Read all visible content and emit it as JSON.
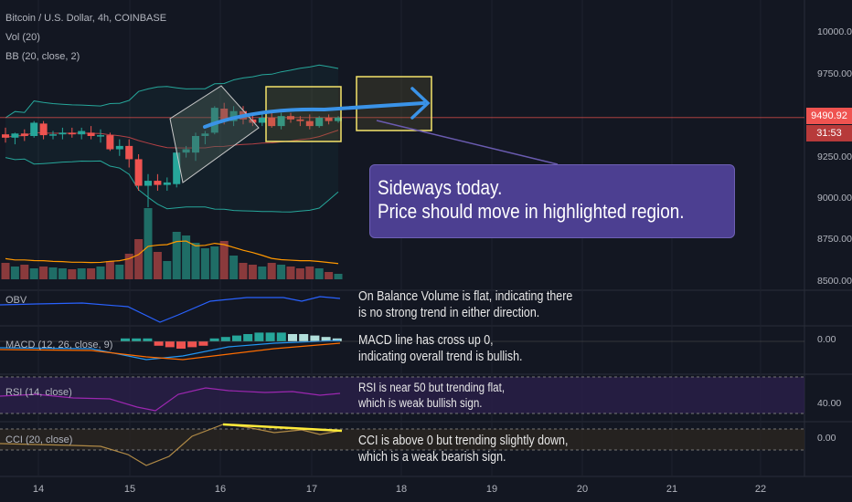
{
  "header": {
    "symbol": "Bitcoin / U.S. Dollar, 4h, COINBASE",
    "vol_label": "Vol (20)",
    "bb_label": "BB (20, close, 2)"
  },
  "colors": {
    "background": "#131722",
    "up": "#26a69a",
    "down": "#ef5350",
    "bb_band": "#26a69a",
    "bb_basis": "#b34045",
    "vol_ma": "#ff9800",
    "obv": "#2962ff",
    "macd": "#2196f3",
    "signal": "#ff6d00",
    "rsi": "#9c27b0",
    "cci": "#b08a46",
    "annotation_box": "#f5e46b",
    "arrow": "#3a93e8",
    "callout": "#4c3f91"
  },
  "price_tag": {
    "price": "9490.92",
    "countdown": "31:53"
  },
  "callout": {
    "line1": "Sideways today.",
    "line2": "Price should move in highlighted region."
  },
  "panes": {
    "obv": {
      "label": "OBV",
      "note1": "On Balance Volume is flat, indicating there",
      "note2": "is no strong trend in either direction."
    },
    "macd": {
      "label": "MACD (12, 26, close, 9)",
      "note1": "MACD line has cross up 0,",
      "note2": "indicating overall trend is bullish.",
      "axis": "0.00"
    },
    "rsi": {
      "label": "RSI (14, close)",
      "note1": "RSI is near 50 but trending flat,",
      "note2": "which is weak bullish sign.",
      "axis": "40.00"
    },
    "cci": {
      "label": "CCI (20, close)",
      "note1": "CCI is above 0 but trending slightly down,",
      "note2": "which is a weak bearish sign.",
      "axis": "0.00"
    }
  },
  "chart_data": {
    "type": "candlestick",
    "title": "Bitcoin / U.S. Dollar, 4h, COINBASE",
    "y_ticks": [
      "10000.00",
      "9750.00",
      "9250.00",
      "9000.00",
      "8750.00",
      "8500.00"
    ],
    "x_ticks": [
      "14",
      "15",
      "16",
      "17",
      "18",
      "19",
      "20",
      "21",
      "22"
    ],
    "ylim": [
      8450,
      10200
    ],
    "candles": [
      {
        "o": 9390,
        "h": 9430,
        "l": 9340,
        "c": 9370
      },
      {
        "o": 9370,
        "h": 9400,
        "l": 9330,
        "c": 9395
      },
      {
        "o": 9395,
        "h": 9420,
        "l": 9350,
        "c": 9380
      },
      {
        "o": 9380,
        "h": 9470,
        "l": 9370,
        "c": 9460
      },
      {
        "o": 9455,
        "h": 9470,
        "l": 9360,
        "c": 9385
      },
      {
        "o": 9385,
        "h": 9410,
        "l": 9360,
        "c": 9390
      },
      {
        "o": 9390,
        "h": 9430,
        "l": 9360,
        "c": 9400
      },
      {
        "o": 9400,
        "h": 9430,
        "l": 9370,
        "c": 9390
      },
      {
        "o": 9390,
        "h": 9430,
        "l": 9360,
        "c": 9410
      },
      {
        "o": 9400,
        "h": 9440,
        "l": 9360,
        "c": 9380
      },
      {
        "o": 9380,
        "h": 9420,
        "l": 9340,
        "c": 9385
      },
      {
        "o": 9385,
        "h": 9400,
        "l": 9290,
        "c": 9300
      },
      {
        "o": 9300,
        "h": 9360,
        "l": 9260,
        "c": 9320
      },
      {
        "o": 9320,
        "h": 9360,
        "l": 9190,
        "c": 9240
      },
      {
        "o": 9240,
        "h": 9270,
        "l": 9050,
        "c": 9080
      },
      {
        "o": 9080,
        "h": 9150,
        "l": 8950,
        "c": 9110
      },
      {
        "o": 9110,
        "h": 9150,
        "l": 9050,
        "c": 9085
      },
      {
        "o": 9085,
        "h": 9130,
        "l": 9050,
        "c": 9100
      },
      {
        "o": 9090,
        "h": 9310,
        "l": 9070,
        "c": 9280
      },
      {
        "o": 9280,
        "h": 9320,
        "l": 9250,
        "c": 9300
      },
      {
        "o": 9280,
        "h": 9400,
        "l": 9230,
        "c": 9380
      },
      {
        "o": 9380,
        "h": 9410,
        "l": 9330,
        "c": 9395
      },
      {
        "o": 9400,
        "h": 9560,
        "l": 9390,
        "c": 9550
      },
      {
        "o": 9545,
        "h": 9580,
        "l": 9450,
        "c": 9470
      },
      {
        "o": 9470,
        "h": 9560,
        "l": 9440,
        "c": 9530
      },
      {
        "o": 9530,
        "h": 9560,
        "l": 9450,
        "c": 9480
      },
      {
        "o": 9480,
        "h": 9520,
        "l": 9440,
        "c": 9460
      },
      {
        "o": 9460,
        "h": 9520,
        "l": 9440,
        "c": 9490
      },
      {
        "o": 9490,
        "h": 9520,
        "l": 9430,
        "c": 9440
      },
      {
        "o": 9440,
        "h": 9520,
        "l": 9420,
        "c": 9500
      },
      {
        "o": 9500,
        "h": 9520,
        "l": 9460,
        "c": 9480
      },
      {
        "o": 9480,
        "h": 9500,
        "l": 9440,
        "c": 9470
      },
      {
        "o": 9470,
        "h": 9510,
        "l": 9420,
        "c": 9440
      },
      {
        "o": 9440,
        "h": 9500,
        "l": 9430,
        "c": 9490
      },
      {
        "o": 9490,
        "h": 9510,
        "l": 9450,
        "c": 9470
      },
      {
        "o": 9470,
        "h": 9500,
        "l": 9460,
        "c": 9491
      }
    ],
    "volume": [
      18,
      14,
      16,
      12,
      14,
      13,
      12,
      11,
      12,
      12,
      14,
      20,
      16,
      28,
      44,
      78,
      30,
      20,
      52,
      48,
      40,
      34,
      36,
      42,
      26,
      18,
      16,
      14,
      18,
      16,
      14,
      12,
      14,
      12,
      8,
      6
    ]
  }
}
